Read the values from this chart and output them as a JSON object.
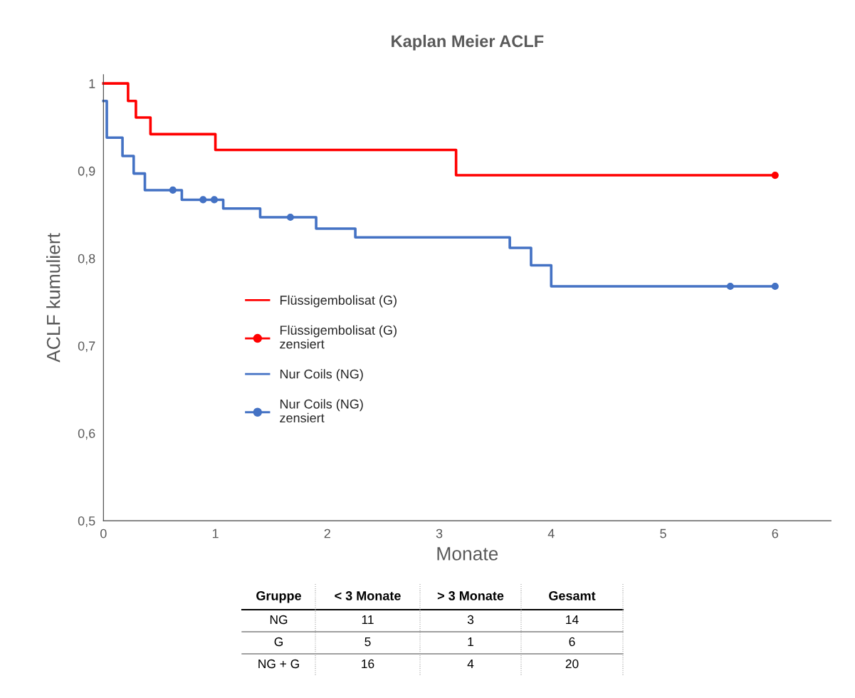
{
  "chart_data": {
    "type": "step",
    "title": "Kaplan Meier ACLF",
    "xlabel": "Monate",
    "ylabel": "ACLF kumuliert",
    "xlim": [
      0,
      6.5
    ],
    "xticks": [
      0,
      1,
      2,
      3,
      4,
      5,
      6
    ],
    "ylim": [
      0.5,
      1.01
    ],
    "yticks": [
      {
        "value": 0.5,
        "label": "0,5"
      },
      {
        "value": 0.6,
        "label": "0,6"
      },
      {
        "value": 0.7,
        "label": "0,7"
      },
      {
        "value": 0.8,
        "label": "0,8"
      },
      {
        "value": 0.9,
        "label": "0,9"
      },
      1
    ],
    "grid": false,
    "legend": "left",
    "series": [
      {
        "name": "Flüssigembolisat (G)",
        "color": "#ff0000",
        "marker": "none",
        "x": [
          0,
          0.22,
          0.29,
          0.42,
          1.0,
          3.15,
          6
        ],
        "values": [
          1.0,
          0.98,
          0.961,
          0.942,
          0.924,
          0.895,
          0.895
        ]
      },
      {
        "name": "Flüssigembolisat (G)\nzensiert",
        "type": "scatter",
        "color": "#ff0000",
        "marker": "circle",
        "x": [
          6
        ],
        "values": [
          0.895
        ]
      },
      {
        "name": "Nur Coils (NG)",
        "color": "#4472c4",
        "marker": "none",
        "x": [
          0,
          0.03,
          0.17,
          0.27,
          0.37,
          0.7,
          1.07,
          1.4,
          1.9,
          2.25,
          3.63,
          3.82,
          4.0,
          6
        ],
        "values": [
          0.98,
          0.938,
          0.917,
          0.897,
          0.878,
          0.867,
          0.857,
          0.847,
          0.834,
          0.824,
          0.812,
          0.792,
          0.768,
          0.768
        ]
      },
      {
        "name": "Nur Coils (NG)\nzensiert",
        "type": "scatter",
        "color": "#4472c4",
        "marker": "circle",
        "x": [
          0.62,
          0.89,
          0.99,
          1.67,
          5.6,
          6
        ],
        "values": [
          0.878,
          0.867,
          0.867,
          0.847,
          0.768,
          0.768
        ]
      }
    ],
    "annotations": [
      "Gruppe",
      "< 3 Monate",
      "> 3 Monate",
      "Gesamt",
      "NG",
      "11",
      "3",
      "14",
      "G",
      "5",
      "1",
      "6",
      "NG + G",
      "16",
      "4",
      "20"
    ]
  }
}
